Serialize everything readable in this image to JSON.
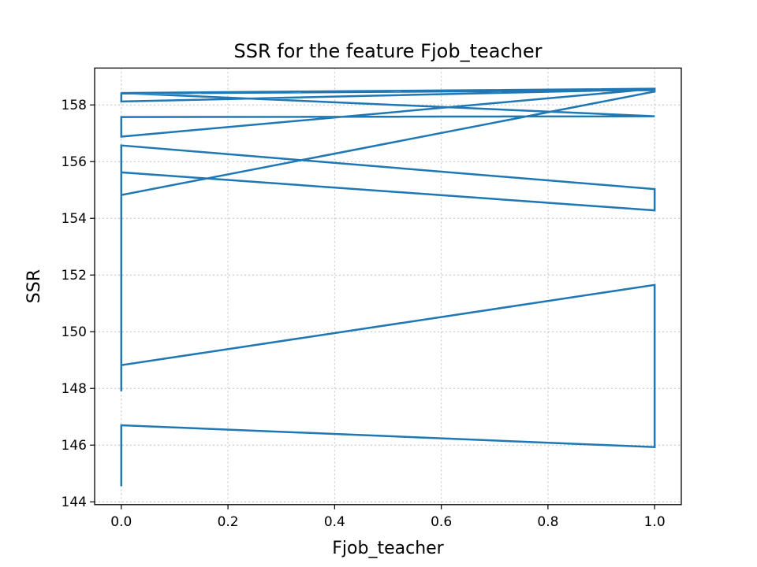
{
  "chart_data": {
    "type": "line",
    "title": "SSR for the feature Fjob_teacher",
    "xlabel": "Fjob_teacher",
    "ylabel": "SSR",
    "xlim": [
      -0.05,
      1.05
    ],
    "ylim": [
      143.9,
      159.3
    ],
    "xticks": [
      0.0,
      0.2,
      0.4,
      0.6,
      0.8,
      1.0
    ],
    "xtick_labels": [
      "0.0",
      "0.2",
      "0.4",
      "0.6",
      "0.8",
      "1.0"
    ],
    "yticks": [
      144,
      146,
      148,
      150,
      152,
      154,
      156,
      158
    ],
    "ytick_labels": [
      "144",
      "146",
      "148",
      "150",
      "152",
      "154",
      "156",
      "158"
    ],
    "grid": true,
    "color": "#1f77b4",
    "series": [
      {
        "x": [
          0,
          0,
          1,
          1,
          0,
          0,
          0,
          1,
          1,
          0,
          0,
          0,
          1,
          1,
          0,
          0,
          0,
          1,
          0,
          1,
          0,
          0,
          1,
          1,
          0
        ],
        "y": [
          144.55,
          146.7,
          145.93,
          151.65,
          148.82,
          147.9,
          155.62,
          154.28,
          155.03,
          156.57,
          152.5,
          154.82,
          158.47,
          158.57,
          156.88,
          157.48,
          157.57,
          157.6,
          158.42,
          158.55,
          158.12,
          158.4,
          158.52,
          158.57,
          158.42
        ]
      }
    ]
  }
}
